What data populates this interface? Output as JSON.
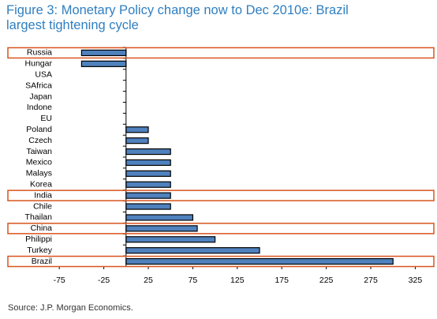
{
  "chart_data": {
    "type": "hbar",
    "title": "Figure 3: Monetary Policy change now to Dec 2010e: Brazil largest tightening cycle",
    "source": "Source: J.P. Morgan Economics.",
    "categories": [
      "Russia",
      "Hungar",
      "USA",
      "SAfrica",
      "Japan",
      "Indone",
      "EU",
      "Poland",
      "Czech",
      "Taiwan",
      "Mexico",
      "Malays",
      "Korea",
      "India",
      "Chile",
      "Thailan",
      "China",
      "Philippi",
      "Turkey",
      "Brazil"
    ],
    "values": [
      -50,
      -50,
      0,
      0,
      0,
      0,
      0,
      25,
      25,
      50,
      50,
      50,
      50,
      50,
      50,
      75,
      80,
      100,
      150,
      300
    ],
    "color": "#4f81bd",
    "xlim": [
      -100,
      345
    ],
    "xticks": [
      -75,
      -25,
      25,
      75,
      125,
      175,
      225,
      275,
      325
    ],
    "highlight": [
      0,
      13,
      16,
      19
    ],
    "highlight_color": "#d9541e"
  }
}
